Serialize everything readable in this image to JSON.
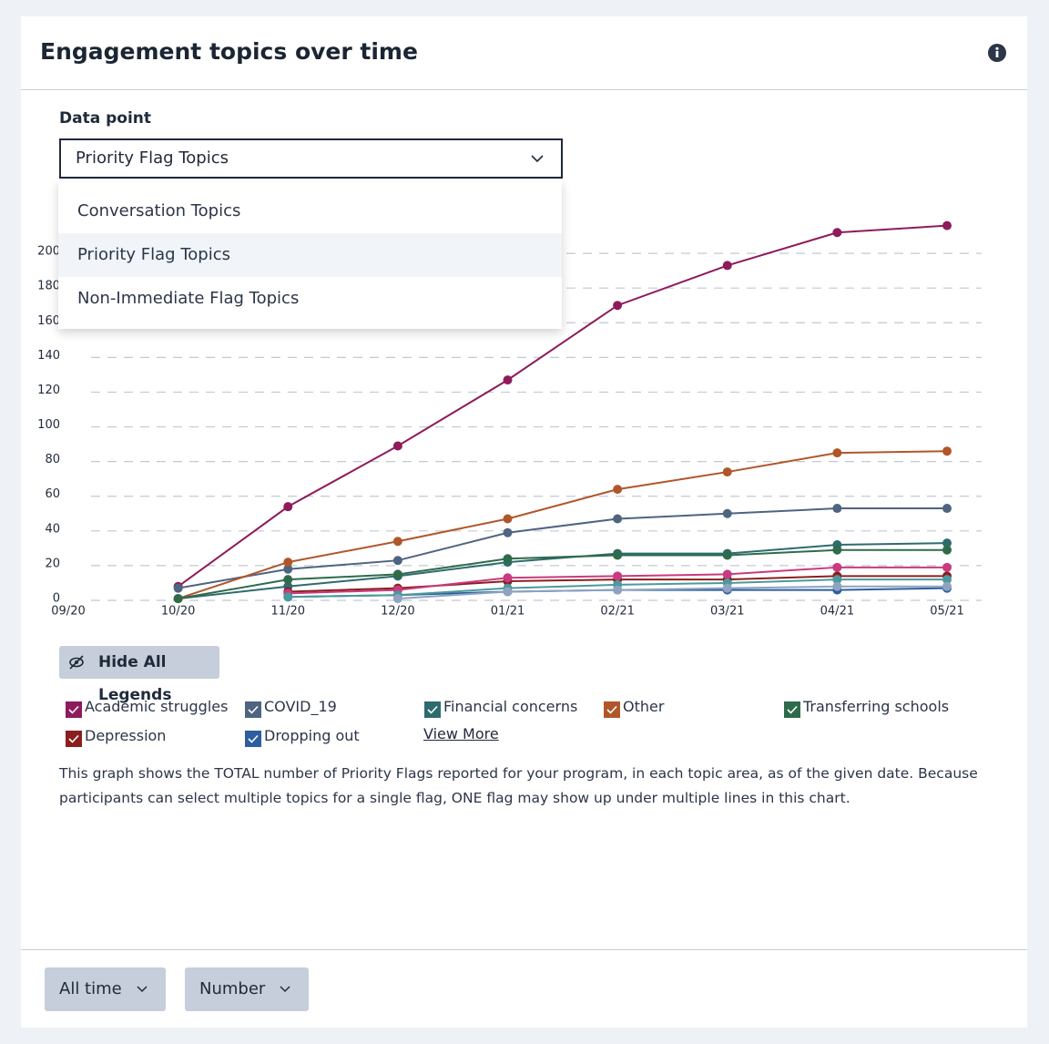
{
  "header": {
    "title": "Engagement topics over time"
  },
  "data_point": {
    "label": "Data point",
    "selected": "Priority Flag Topics",
    "options": [
      "Conversation Topics",
      "Priority Flag Topics",
      "Non-Immediate Flag Topics"
    ]
  },
  "chart_data": {
    "type": "line",
    "categories": [
      "09/20",
      "10/20",
      "11/20",
      "12/20",
      "01/21",
      "02/21",
      "03/21",
      "04/21",
      "05/21"
    ],
    "ylim": [
      0,
      220
    ],
    "yticks": [
      0,
      20,
      40,
      60,
      80,
      100,
      120,
      140,
      160,
      180,
      200
    ],
    "grid": true,
    "series": [
      {
        "name": "Academic struggles",
        "color": "#8e1b5b",
        "values": [
          null,
          8,
          54,
          89,
          127,
          170,
          193,
          212,
          216
        ]
      },
      {
        "name": "COVID_19",
        "color": "#4f6480",
        "values": [
          null,
          7,
          18,
          23,
          39,
          47,
          50,
          53,
          53
        ]
      },
      {
        "name": "Financial concerns",
        "color": "#2e6b6e",
        "values": [
          null,
          1,
          8,
          14,
          22,
          27,
          27,
          32,
          33
        ]
      },
      {
        "name": "Other",
        "color": "#b0572a",
        "values": [
          null,
          1,
          22,
          34,
          47,
          64,
          74,
          85,
          86
        ]
      },
      {
        "name": "Transferring schools",
        "color": "#2f6b4b",
        "values": [
          null,
          1,
          12,
          15,
          24,
          26,
          26,
          29,
          29
        ]
      },
      {
        "name": "Depression",
        "color": "#8b1f1f",
        "values": [
          null,
          null,
          5,
          7,
          11,
          12,
          12,
          14,
          14
        ]
      },
      {
        "name": "Dropping out",
        "color": "#2d5f9e",
        "values": [
          null,
          null,
          2,
          3,
          5,
          6,
          6,
          6,
          7
        ]
      },
      {
        "color": "#c93a7e",
        "values": [
          null,
          null,
          4,
          6,
          13,
          14,
          15,
          19,
          19
        ]
      },
      {
        "color": "#4a9a9e",
        "values": [
          null,
          null,
          2,
          3,
          7,
          9,
          10,
          12,
          12
        ]
      },
      {
        "color": "#8fa3c0",
        "values": [
          null,
          null,
          null,
          1,
          5,
          6,
          7,
          8,
          8
        ]
      }
    ]
  },
  "controls": {
    "hide_legends": "Hide All Legends",
    "view_more": "View More"
  },
  "description": "This graph shows the TOTAL number of Priority Flags reported for your program, in each topic area, as of the given date. Because participants can select multiple topics for a single flag, ONE flag may show up under multiple lines in this chart.",
  "footer": {
    "range": "All time",
    "mode": "Number"
  }
}
